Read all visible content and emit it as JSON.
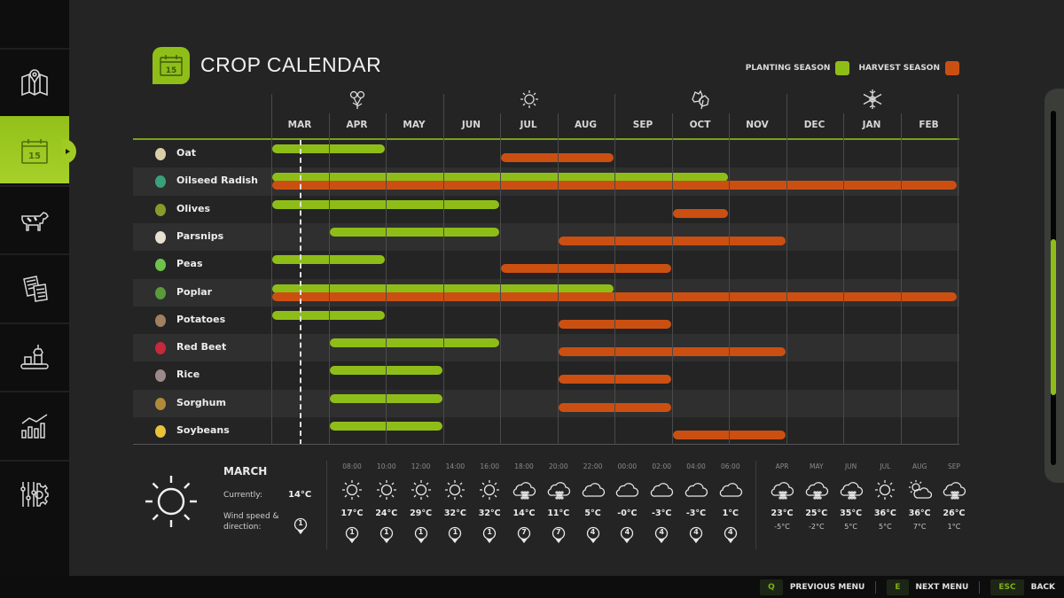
{
  "sidebar": {
    "items": [
      {
        "name": "map",
        "icon": "map-pin-icon",
        "active": false
      },
      {
        "name": "calendar",
        "icon": "calendar-icon",
        "active": true
      },
      {
        "name": "animals",
        "icon": "cow-icon",
        "active": false
      },
      {
        "name": "contracts",
        "icon": "documents-icon",
        "active": false
      },
      {
        "name": "production",
        "icon": "production-icon",
        "active": false
      },
      {
        "name": "statistics",
        "icon": "chart-icon",
        "active": false
      },
      {
        "name": "settings",
        "icon": "settings-icon",
        "active": false
      }
    ]
  },
  "header": {
    "title": "CROP CALENDAR",
    "calendar_day": "15"
  },
  "legend": {
    "planting_label": "PLANTING SEASON",
    "planting_color": "#8fbd18",
    "harvest_label": "HARVEST SEASON",
    "harvest_color": "#cc4f12"
  },
  "seasons": [
    {
      "name": "spring",
      "icon": "flower-icon"
    },
    {
      "name": "summer",
      "icon": "sun-icon"
    },
    {
      "name": "autumn",
      "icon": "leaves-icon"
    },
    {
      "name": "winter",
      "icon": "snowflake-icon"
    }
  ],
  "months": [
    "MAR",
    "APR",
    "MAY",
    "JUN",
    "JUL",
    "AUG",
    "SEP",
    "OCT",
    "NOV",
    "DEC",
    "JAN",
    "FEB"
  ],
  "current_month_marker": "MAR",
  "crops": [
    {
      "name": "Oat",
      "icon": "oat-icon",
      "planting": [
        0,
        1
      ],
      "harvest": [
        4,
        5
      ]
    },
    {
      "name": "Oilseed Radish",
      "icon": "oilseed-radish-icon",
      "planting": [
        0,
        7
      ],
      "harvest": [
        0,
        11
      ]
    },
    {
      "name": "Olives",
      "icon": "olives-icon",
      "planting": [
        0,
        3
      ],
      "harvest": [
        7,
        7
      ]
    },
    {
      "name": "Parsnips",
      "icon": "parsnips-icon",
      "planting": [
        1,
        3
      ],
      "harvest": [
        5,
        8
      ]
    },
    {
      "name": "Peas",
      "icon": "peas-icon",
      "planting": [
        0,
        1
      ],
      "harvest": [
        4,
        6
      ]
    },
    {
      "name": "Poplar",
      "icon": "poplar-icon",
      "planting": [
        0,
        5
      ],
      "harvest": [
        0,
        11
      ]
    },
    {
      "name": "Potatoes",
      "icon": "potatoes-icon",
      "planting": [
        0,
        1
      ],
      "harvest": [
        5,
        6
      ]
    },
    {
      "name": "Red Beet",
      "icon": "red-beet-icon",
      "planting": [
        1,
        3
      ],
      "harvest": [
        5,
        8
      ]
    },
    {
      "name": "Rice",
      "icon": "rice-icon",
      "planting": [
        1,
        2
      ],
      "harvest": [
        5,
        6
      ]
    },
    {
      "name": "Sorghum",
      "icon": "sorghum-icon",
      "planting": [
        1,
        2
      ],
      "harvest": [
        5,
        6
      ]
    },
    {
      "name": "Soybeans",
      "icon": "soybeans-icon",
      "planting": [
        1,
        2
      ],
      "harvest": [
        7,
        8
      ]
    }
  ],
  "weather": {
    "month": "MARCH",
    "current_label": "Currently:",
    "current_temp": "14°C",
    "wind_label": "Wind speed & direction:",
    "wind_value": "1",
    "hourly": [
      {
        "time": "08:00",
        "icon": "sun",
        "temp": "17°C",
        "wind": "1"
      },
      {
        "time": "10:00",
        "icon": "sun",
        "temp": "24°C",
        "wind": "1"
      },
      {
        "time": "12:00",
        "icon": "sun",
        "temp": "29°C",
        "wind": "1"
      },
      {
        "time": "14:00",
        "icon": "sun",
        "temp": "32°C",
        "wind": "1"
      },
      {
        "time": "16:00",
        "icon": "sun",
        "temp": "32°C",
        "wind": "1"
      },
      {
        "time": "18:00",
        "icon": "hail",
        "temp": "14°C",
        "wind": "7"
      },
      {
        "time": "20:00",
        "icon": "hail",
        "temp": "11°C",
        "wind": "7"
      },
      {
        "time": "22:00",
        "icon": "cloud",
        "temp": "5°C",
        "wind": "4"
      },
      {
        "time": "00:00",
        "icon": "cloud",
        "temp": "-0°C",
        "wind": "4"
      },
      {
        "time": "02:00",
        "icon": "cloud",
        "temp": "-3°C",
        "wind": "4"
      },
      {
        "time": "04:00",
        "icon": "cloud",
        "temp": "-3°C",
        "wind": "4"
      },
      {
        "time": "06:00",
        "icon": "cloud",
        "temp": "1°C",
        "wind": "4"
      }
    ],
    "monthly": [
      {
        "month": "APR",
        "icon": "hail",
        "high": "23°C",
        "low": "-5°C"
      },
      {
        "month": "MAY",
        "icon": "hail",
        "high": "25°C",
        "low": "-2°C"
      },
      {
        "month": "JUN",
        "icon": "hail",
        "high": "35°C",
        "low": "5°C"
      },
      {
        "month": "JUL",
        "icon": "sun",
        "high": "36°C",
        "low": "5°C"
      },
      {
        "month": "AUG",
        "icon": "partly-cloudy",
        "high": "36°C",
        "low": "7°C"
      },
      {
        "month": "SEP",
        "icon": "hail",
        "high": "26°C",
        "low": "1°C"
      }
    ]
  },
  "footer": {
    "actions": [
      {
        "key": "Q",
        "label": "PREVIOUS MENU"
      },
      {
        "key": "E",
        "label": "NEXT MENU"
      },
      {
        "key": "ESC",
        "label": "BACK"
      }
    ]
  }
}
